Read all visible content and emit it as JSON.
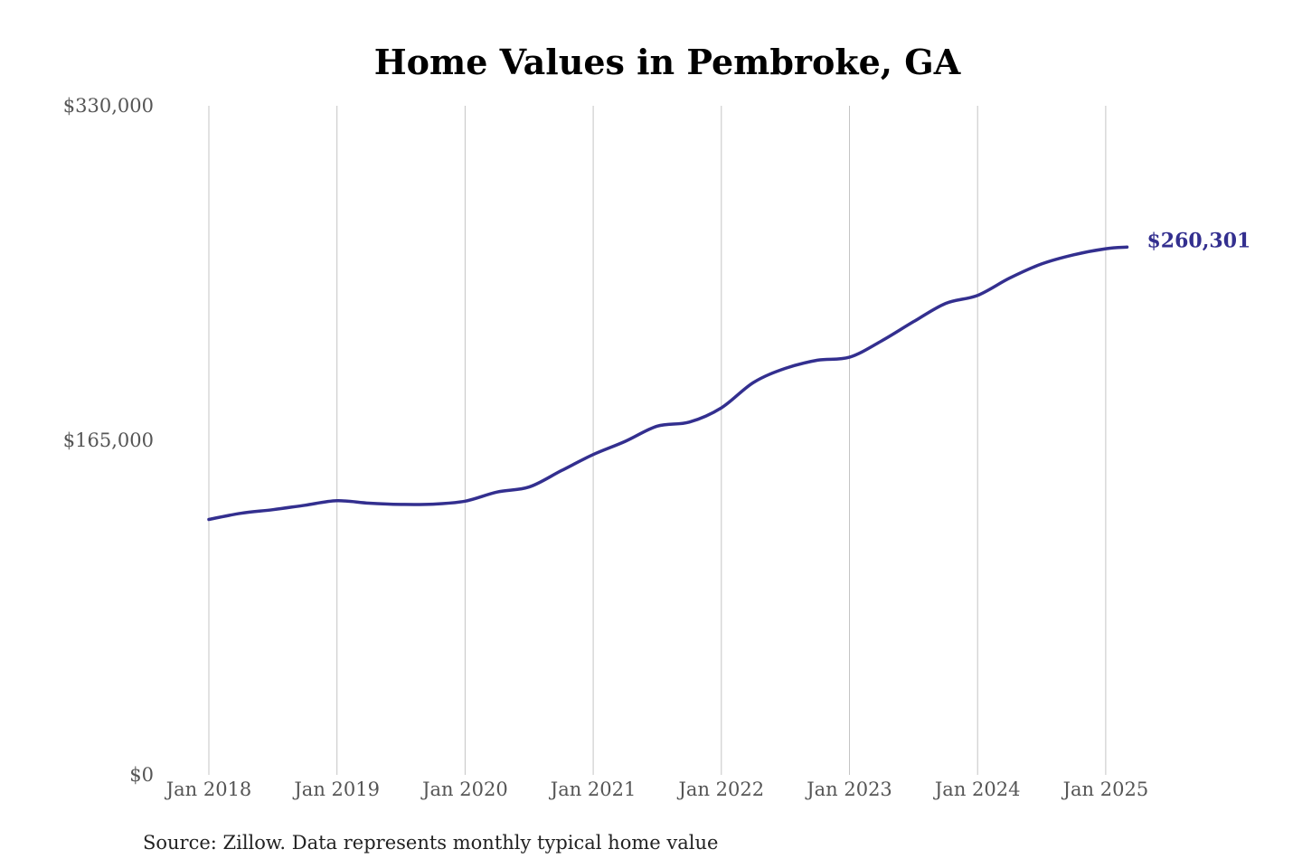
{
  "chart_data": {
    "type": "line",
    "title": "Home Values in Pembroke, GA",
    "xlabel": "",
    "ylabel": "",
    "source": "Source: Zillow. Data represents monthly typical home value",
    "ylim": [
      0,
      330000
    ],
    "y_ticks": [
      {
        "value": 0,
        "label": "$0"
      },
      {
        "value": 165000,
        "label": "$165,000"
      },
      {
        "value": 330000,
        "label": "$330,000"
      }
    ],
    "x_ticks": [
      {
        "value": "2018-01",
        "label": "Jan 2018"
      },
      {
        "value": "2019-01",
        "label": "Jan 2019"
      },
      {
        "value": "2020-01",
        "label": "Jan 2020"
      },
      {
        "value": "2021-01",
        "label": "Jan 2021"
      },
      {
        "value": "2022-01",
        "label": "Jan 2022"
      },
      {
        "value": "2023-01",
        "label": "Jan 2023"
      },
      {
        "value": "2024-01",
        "label": "Jan 2024"
      },
      {
        "value": "2025-01",
        "label": "Jan 2025"
      }
    ],
    "grid": {
      "vertical": true,
      "horizontal": false
    },
    "end_label": "$260,301",
    "colors": {
      "line": "#332f8f",
      "grid": "#c4c4c4"
    },
    "series": [
      {
        "points": [
          {
            "x": "2018-01",
            "y": 126000
          },
          {
            "x": "2018-04",
            "y": 129000
          },
          {
            "x": "2018-07",
            "y": 130800
          },
          {
            "x": "2018-10",
            "y": 133000
          },
          {
            "x": "2019-01",
            "y": 135200
          },
          {
            "x": "2019-04",
            "y": 134000
          },
          {
            "x": "2019-07",
            "y": 133400
          },
          {
            "x": "2019-10",
            "y": 133500
          },
          {
            "x": "2020-01",
            "y": 135000
          },
          {
            "x": "2020-04",
            "y": 139500
          },
          {
            "x": "2020-07",
            "y": 142000
          },
          {
            "x": "2020-10",
            "y": 150000
          },
          {
            "x": "2021-01",
            "y": 158000
          },
          {
            "x": "2021-04",
            "y": 164500
          },
          {
            "x": "2021-07",
            "y": 172000
          },
          {
            "x": "2021-10",
            "y": 174000
          },
          {
            "x": "2022-01",
            "y": 181000
          },
          {
            "x": "2022-04",
            "y": 193500
          },
          {
            "x": "2022-07",
            "y": 200500
          },
          {
            "x": "2022-10",
            "y": 204500
          },
          {
            "x": "2023-01",
            "y": 206000
          },
          {
            "x": "2023-04",
            "y": 214000
          },
          {
            "x": "2023-07",
            "y": 223500
          },
          {
            "x": "2023-10",
            "y": 232500
          },
          {
            "x": "2024-01",
            "y": 236500
          },
          {
            "x": "2024-04",
            "y": 245000
          },
          {
            "x": "2024-07",
            "y": 252000
          },
          {
            "x": "2024-10",
            "y": 256500
          },
          {
            "x": "2025-01",
            "y": 259500
          },
          {
            "x": "2025-03",
            "y": 260301
          }
        ]
      }
    ]
  }
}
